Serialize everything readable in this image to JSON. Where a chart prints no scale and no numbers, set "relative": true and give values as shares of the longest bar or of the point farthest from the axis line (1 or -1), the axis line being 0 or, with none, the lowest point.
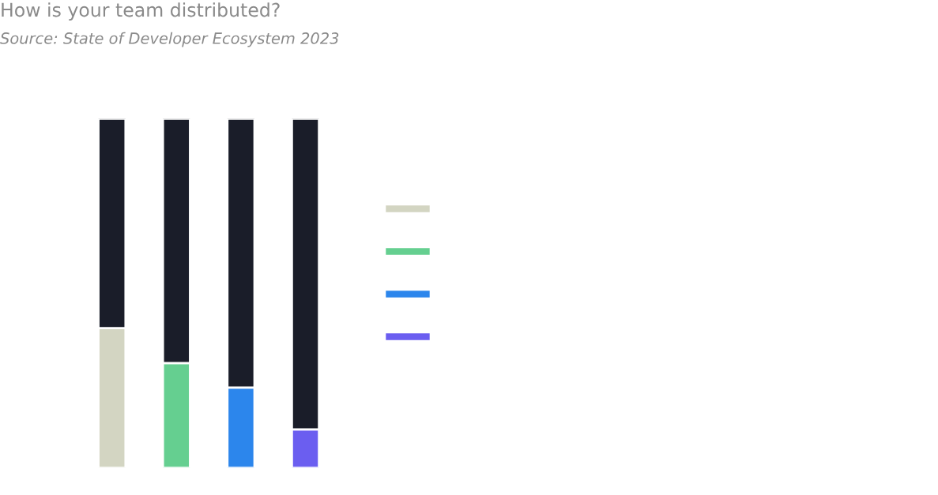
{
  "chart_data": {
    "type": "bar",
    "title": "How is your team distributed?",
    "subtitle": "Source: State of Developer Ecosystem 2023",
    "categories": [
      null,
      null,
      null,
      null
    ],
    "stacked": true,
    "relative": true,
    "series": [
      {
        "colors": [
          "#d3d5c2",
          "#65cf90",
          "#2c86ec",
          "#6b5ef0"
        ],
        "values": [
          0.4,
          0.3,
          0.23,
          0.11
        ]
      },
      {
        "color": "#1a1d29",
        "values": [
          0.6,
          0.7,
          0.77,
          0.89
        ]
      }
    ]
  }
}
